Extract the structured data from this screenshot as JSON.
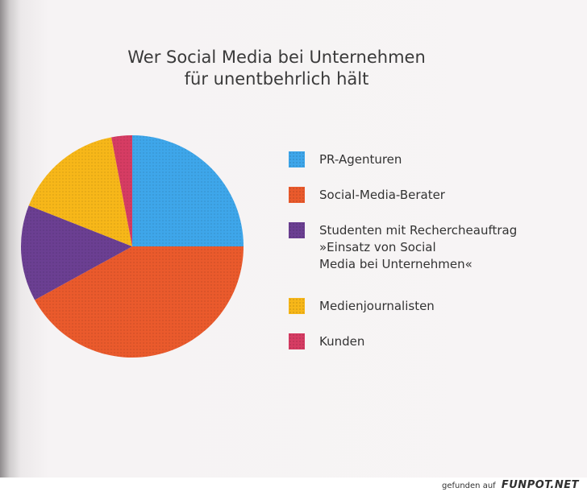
{
  "chart_data": {
    "type": "pie",
    "title": "Wer Social Media bei Unternehmen für unentbehrlich hält",
    "title_lines": [
      "Wer Social Media bei Unternehmen",
      "für unentbehrlich hält"
    ],
    "labels": [
      "PR-Agenturen",
      "Social-Media-Berater",
      "Studenten mit Rechercheauftrag\n»Einsatz von Social\nMedia bei Unternehmen«",
      "Medienjournalisten",
      "Kunden"
    ],
    "values": [
      25,
      42,
      14,
      16,
      3
    ],
    "colors": [
      "#3ea6ea",
      "#ea5a2c",
      "#6b3f92",
      "#f7b719",
      "#d63c63"
    ],
    "legend_position": "right"
  },
  "footer": {
    "prefix": "gefunden auf",
    "brand": "FUNPOT.NET"
  }
}
